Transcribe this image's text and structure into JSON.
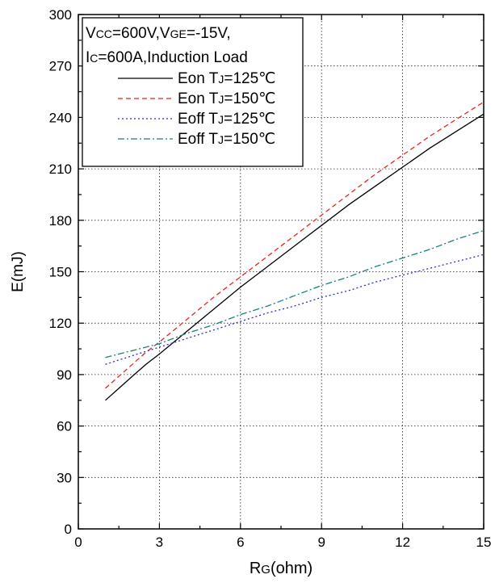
{
  "chart_data": {
    "type": "line",
    "xlabel": {
      "main": "R",
      "sub": "G",
      "rest": "(ohm)"
    },
    "ylabel": "E(mJ)",
    "xlim": [
      0,
      15
    ],
    "ylim": [
      0,
      300
    ],
    "x_ticks": [
      0,
      3,
      6,
      9,
      12,
      15
    ],
    "y_ticks": [
      0,
      30,
      60,
      90,
      120,
      150,
      180,
      210,
      240,
      270,
      300
    ],
    "grid": true,
    "legend_position": "top-left",
    "legend_header": [
      [
        {
          "t": "V",
          "sub": false
        },
        {
          "t": "CC",
          "sub": true
        },
        {
          "t": "=600V,V",
          "sub": false
        },
        {
          "t": "GE",
          "sub": true
        },
        {
          "t": "=-15V,",
          "sub": false
        }
      ],
      [
        {
          "t": "I",
          "sub": false
        },
        {
          "t": "C",
          "sub": true
        },
        {
          "t": "=600A,Induction Load",
          "sub": false
        }
      ]
    ],
    "series": [
      {
        "name_parts": [
          {
            "t": "Eon T",
            "sub": false
          },
          {
            "t": "J",
            "sub": true
          },
          {
            "t": "=125℃",
            "sub": false
          }
        ],
        "color": "#000000",
        "dash": "",
        "x": [
          1,
          1.5,
          2,
          2.5,
          3,
          4,
          5,
          6,
          7,
          8,
          9,
          10,
          11,
          12,
          13,
          14,
          15
        ],
        "values": [
          75,
          82,
          89,
          96,
          102,
          115,
          128,
          141,
          153,
          165,
          177,
          189,
          200,
          211,
          222,
          232,
          242
        ]
      },
      {
        "name_parts": [
          {
            "t": "Eon T",
            "sub": false
          },
          {
            "t": "J",
            "sub": true
          },
          {
            "t": "=150℃",
            "sub": false
          }
        ],
        "color": "#e8231f",
        "dash": "6,4",
        "x": [
          1,
          1.5,
          2,
          2.5,
          3,
          4,
          5,
          6,
          7,
          8,
          9,
          10,
          11,
          12,
          13,
          14,
          15
        ],
        "values": [
          82,
          89,
          96,
          103,
          109,
          122,
          135,
          147,
          159,
          171,
          183,
          195,
          207,
          218,
          229,
          239,
          249
        ]
      },
      {
        "name_parts": [
          {
            "t": "Eoff T",
            "sub": false
          },
          {
            "t": "J",
            "sub": true
          },
          {
            "t": "=125℃",
            "sub": false
          }
        ],
        "color": "#2b2bd0",
        "dash": "2,3",
        "x": [
          1,
          2,
          3,
          4,
          5,
          6,
          7,
          8,
          9,
          10,
          11,
          12,
          13,
          14,
          15
        ],
        "values": [
          96,
          101,
          106,
          111,
          116,
          121,
          126,
          130,
          135,
          139,
          144,
          148,
          152,
          156,
          160
        ]
      },
      {
        "name_parts": [
          {
            "t": "Eoff T",
            "sub": false
          },
          {
            "t": "J",
            "sub": true
          },
          {
            "t": "=150℃",
            "sub": false
          }
        ],
        "color": "#1a7e7e",
        "dash": "8,3,2,3",
        "x": [
          1,
          2,
          3,
          4,
          5,
          6,
          7,
          8,
          9,
          10,
          11,
          12,
          13,
          14,
          15
        ],
        "values": [
          100,
          104,
          108,
          114,
          119,
          125,
          130,
          136,
          142,
          147,
          153,
          158,
          163,
          169,
          174
        ]
      }
    ]
  }
}
